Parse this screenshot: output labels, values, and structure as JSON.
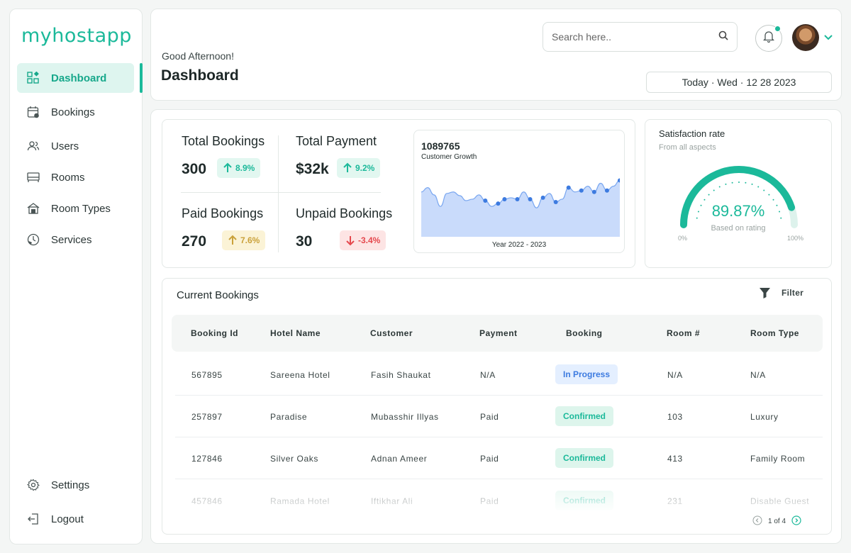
{
  "app": {
    "logo_text": "myhostapp",
    "brand_color": "#1bb99a"
  },
  "sidebar": {
    "items": [
      {
        "label": "Dashboard",
        "icon": "dashboard-icon",
        "active": true
      },
      {
        "label": "Bookings",
        "icon": "calendar-check-icon"
      },
      {
        "label": "Users",
        "icon": "users-icon"
      },
      {
        "label": "Rooms",
        "icon": "bed-icon"
      },
      {
        "label": "Room Types",
        "icon": "house-icon"
      },
      {
        "label": "Services",
        "icon": "phone-clock-icon"
      }
    ],
    "footer": [
      {
        "label": "Settings",
        "icon": "gear-icon"
      },
      {
        "label": "Logout",
        "icon": "logout-icon"
      }
    ]
  },
  "header": {
    "greeting": "Good Afternoon!",
    "title": "Dashboard",
    "search_placeholder": "Search here..",
    "date": "Today · Wed · 12 28 2023"
  },
  "stats": {
    "total_bookings": {
      "label": "Total Bookings",
      "value": "300",
      "change": "8.9%",
      "trend": "up"
    },
    "total_payment": {
      "label": "Total Payment",
      "value": "$32k",
      "change": "9.2%",
      "trend": "up"
    },
    "paid_bookings": {
      "label": "Paid Bookings",
      "value": "270",
      "change": "7.6%",
      "trend": "up"
    },
    "unpaid_bookings": {
      "label": "Unpaid Bookings",
      "value": "30",
      "change": "-3.4%",
      "trend": "down"
    }
  },
  "chart_data": {
    "type": "area",
    "headline_value": "1089765",
    "title": "Customer Growth",
    "xlabel": "Year 2022 - 2023",
    "values": [
      62,
      68,
      58,
      42,
      60,
      62,
      57,
      50,
      52,
      58,
      50,
      42,
      46,
      52,
      54,
      52,
      62,
      52,
      40,
      54,
      60,
      48,
      52,
      68,
      62,
      64,
      70,
      62,
      74,
      64,
      70,
      78
    ],
    "marked_points": [
      10,
      12,
      13,
      15,
      17,
      19,
      21,
      23,
      25,
      27,
      29,
      31
    ],
    "ylim": [
      0,
      100
    ],
    "fill_color": "#c9dbfb",
    "line_color": "#7aa7f0"
  },
  "satisfaction": {
    "title": "Satisfaction rate",
    "subtitle": "From all aspects",
    "percent_text": "89.87%",
    "percent": 89.87,
    "sub_label": "Based on rating",
    "min_label": "0%",
    "max_label": "100%"
  },
  "bookings": {
    "title": "Current Bookings",
    "filter_label": "Filter",
    "columns": [
      "Booking Id",
      "Hotel Name",
      "Customer",
      "Payment",
      "Booking",
      "Room #",
      "Room Type"
    ],
    "rows": [
      {
        "id": "567895",
        "hotel": "Sareena Hotel",
        "customer": "Fasih Shaukat",
        "payment": "N/A",
        "status": "In Progress",
        "room": "N/A",
        "type": "N/A"
      },
      {
        "id": "257897",
        "hotel": "Paradise",
        "customer": "Mubasshir Illyas",
        "payment": "Paid",
        "status": "Confirmed",
        "room": "103",
        "type": "Luxury"
      },
      {
        "id": "127846",
        "hotel": "Silver Oaks",
        "customer": "Adnan Ameer",
        "payment": "Paid",
        "status": "Confirmed",
        "room": "413",
        "type": "Family Room"
      },
      {
        "id": "457846",
        "hotel": "Ramada Hotel",
        "customer": "Iftikhar Ali",
        "payment": "Paid",
        "status": "Confirmed",
        "room": "231",
        "type": "Disable Guest"
      }
    ],
    "pagination": "1 of 4"
  }
}
